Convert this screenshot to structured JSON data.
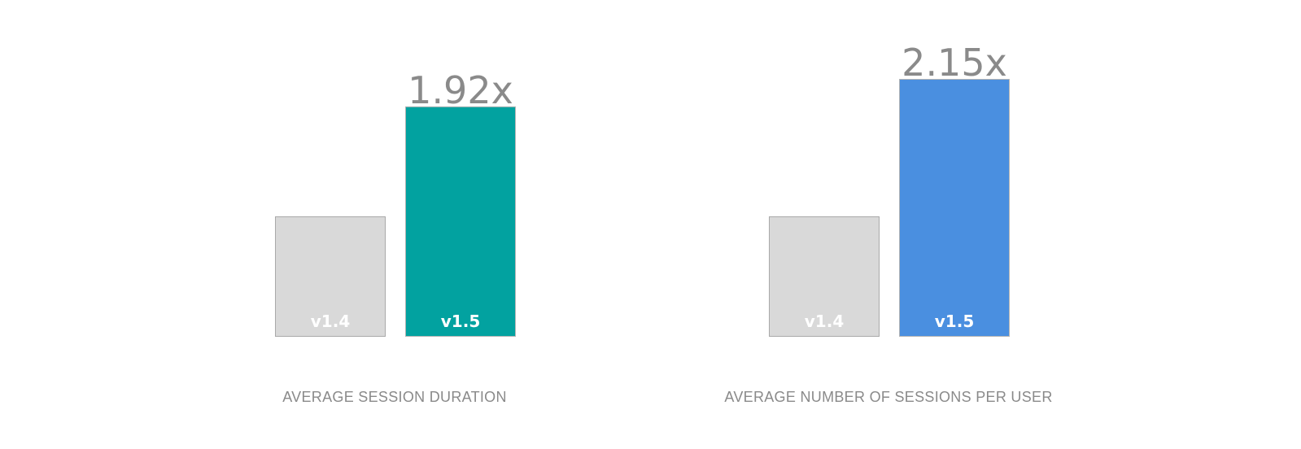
{
  "chart_data": [
    {
      "type": "bar",
      "xlabel": "AVERAGE SESSION DURATION",
      "categories": [
        "v1.4",
        "v1.5"
      ],
      "values": [
        1,
        1.92
      ],
      "data_labels": [
        "",
        "1.92x"
      ],
      "colors": [
        "#d9d9d9",
        "#02a2a0"
      ],
      "ylim": [
        0,
        2.15
      ]
    },
    {
      "type": "bar",
      "xlabel": "AVERAGE NUMBER OF SESSIONS PER USER",
      "categories": [
        "v1.4",
        "v1.5"
      ],
      "values": [
        1,
        2.15
      ],
      "data_labels": [
        "",
        "2.15x"
      ],
      "colors": [
        "#d9d9d9",
        "#4a8fe0"
      ],
      "ylim": [
        0,
        2.15
      ]
    }
  ]
}
